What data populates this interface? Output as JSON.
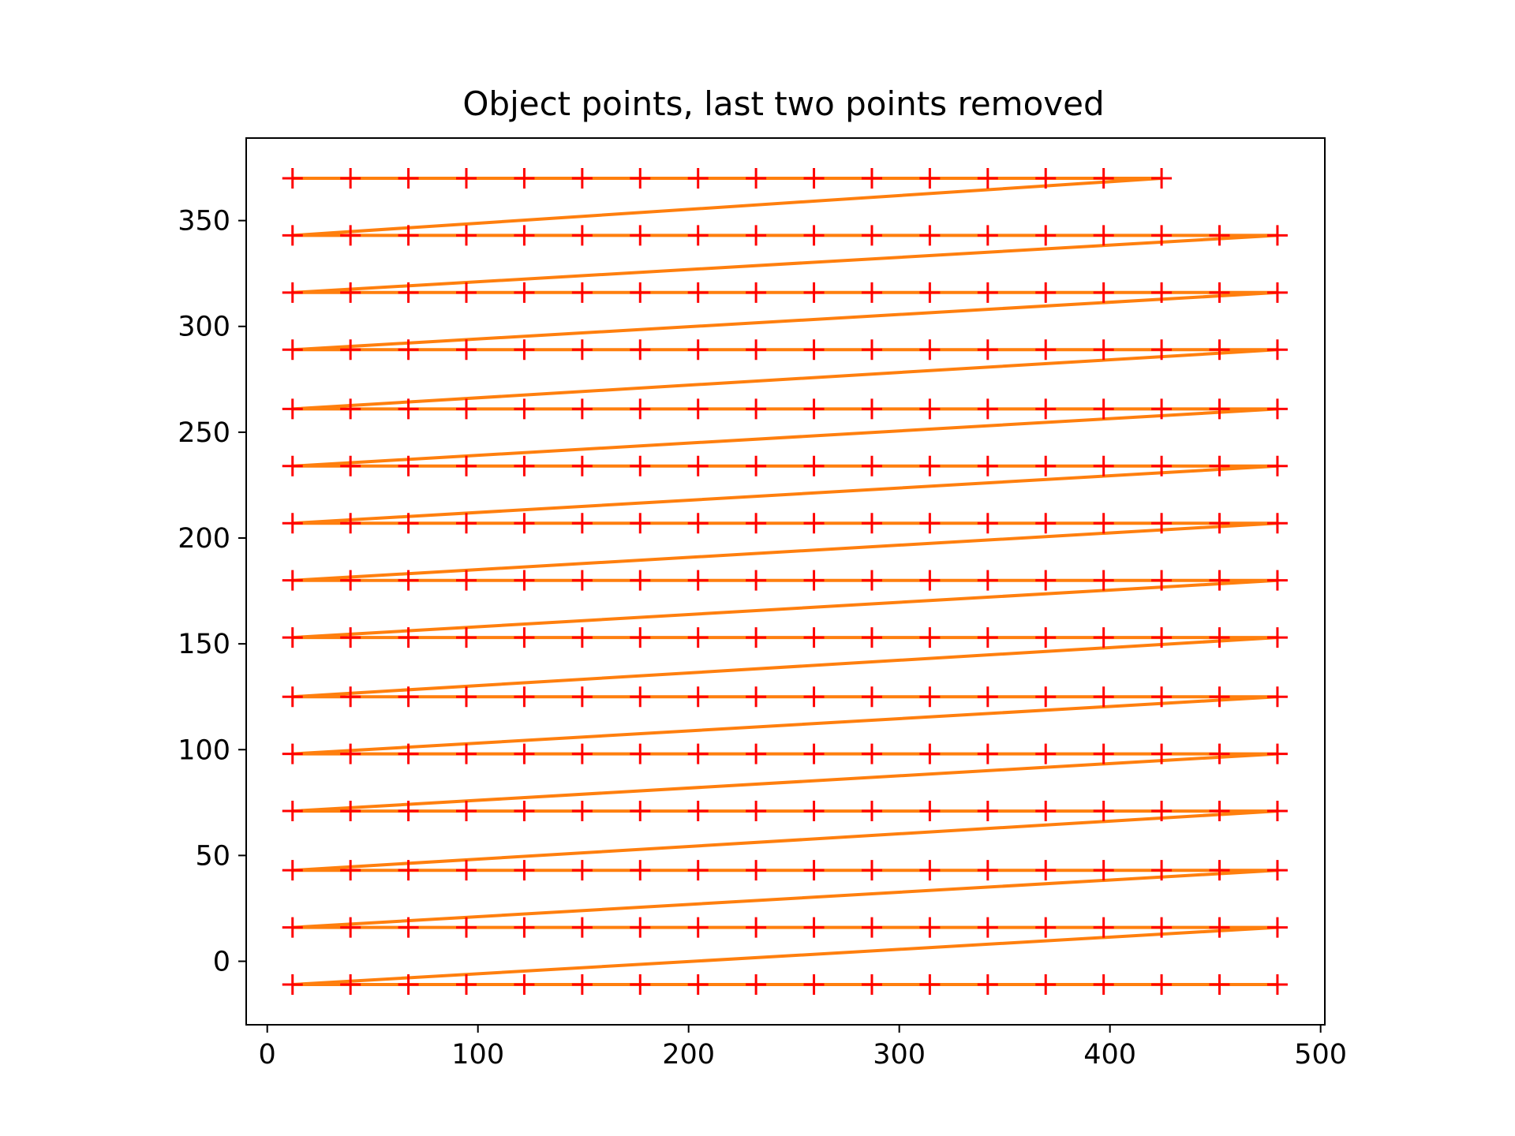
{
  "chart_data": {
    "type": "line",
    "title": "Object points, last two points removed",
    "xlabel": "",
    "ylabel": "",
    "xlim": [
      -10,
      502
    ],
    "ylim": [
      -30,
      389
    ],
    "xticks": [
      0,
      100,
      200,
      300,
      400,
      500
    ],
    "yticks": [
      0,
      50,
      100,
      150,
      200,
      250,
      300,
      350
    ],
    "grid": false,
    "legend": "none",
    "colors": {
      "line": "#ff7f0e",
      "marker": "#ff0000"
    },
    "marker": "plus",
    "grid_layout": {
      "x_values": [
        12,
        39.5,
        67,
        94.5,
        122,
        149.5,
        177,
        204.5,
        232,
        259.5,
        287,
        314.5,
        342,
        369.5,
        397,
        424.5,
        452,
        479.5
      ],
      "row_y_values": [
        370,
        343,
        316,
        289,
        261,
        234,
        207,
        180,
        153,
        125,
        98,
        71,
        43,
        16,
        -11
      ],
      "last_row_point_count": 16
    }
  }
}
